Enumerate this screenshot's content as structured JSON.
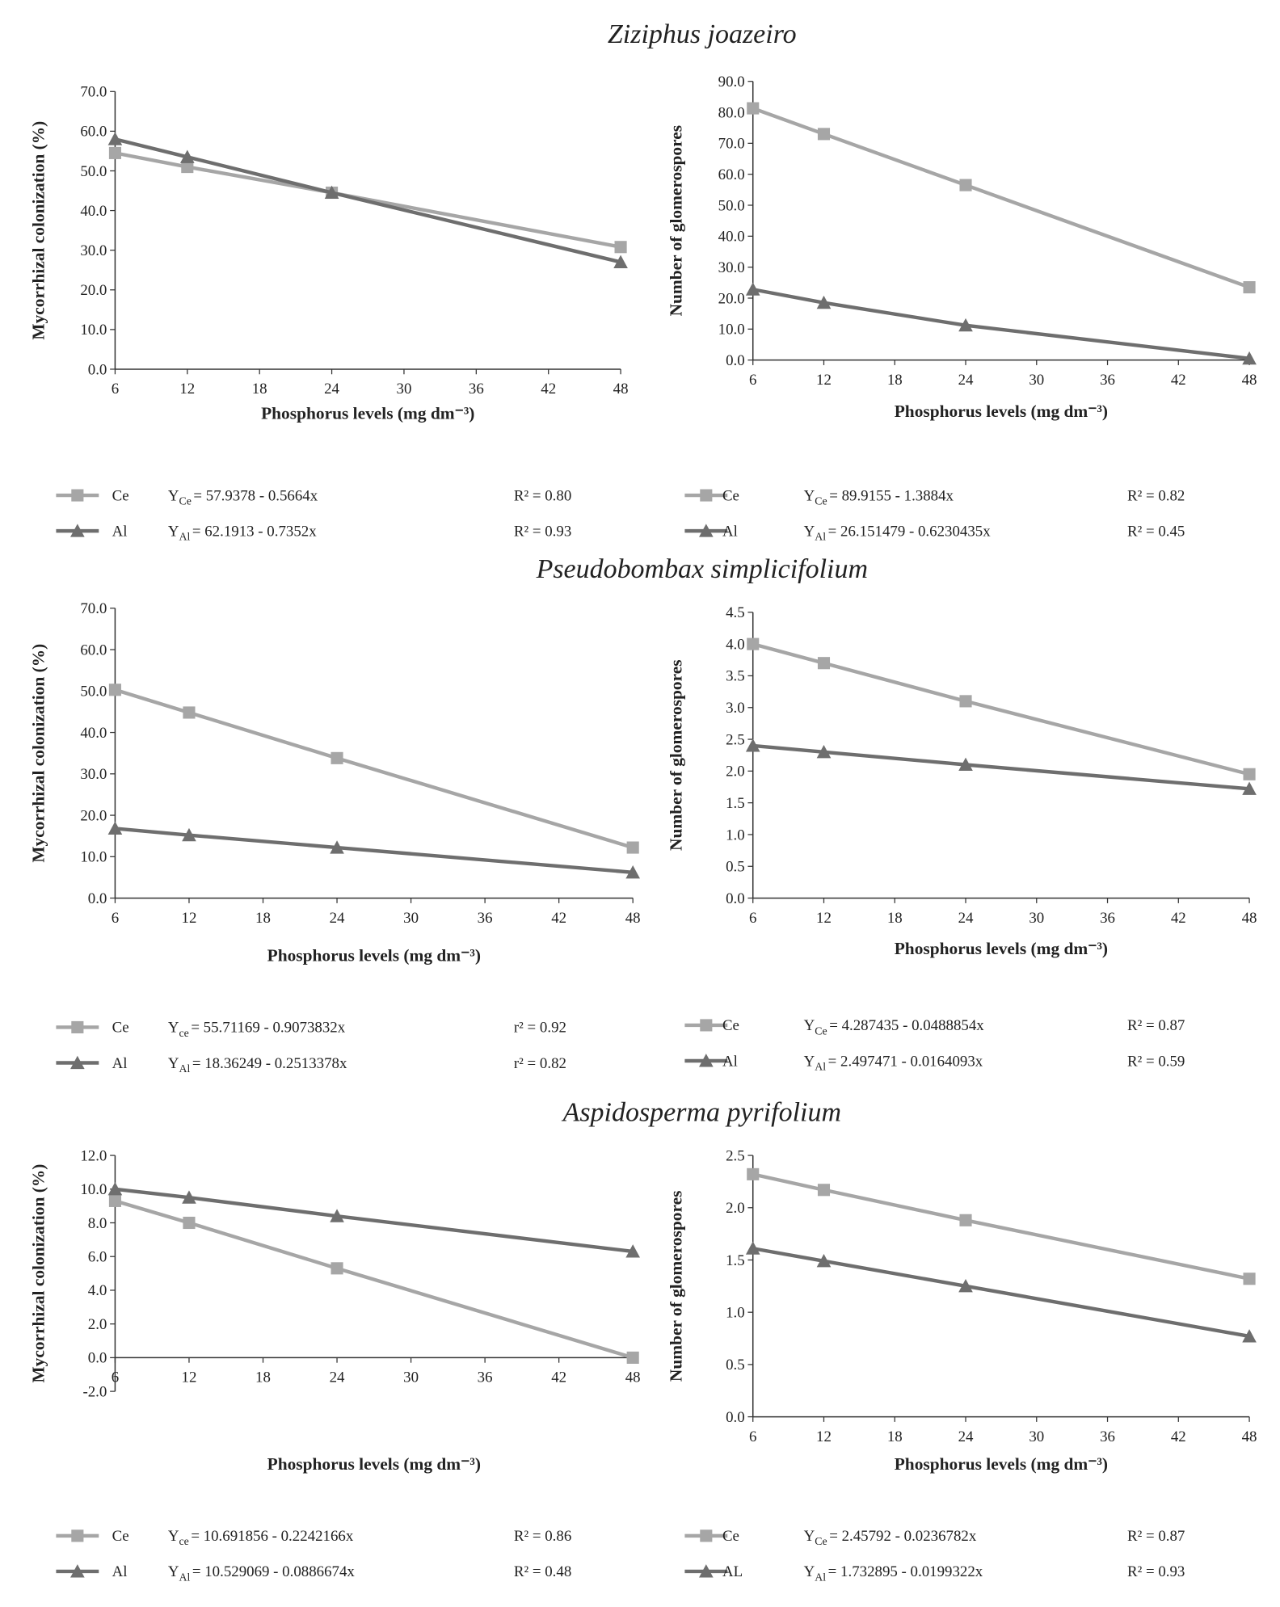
{
  "section_titles": [
    "Ziziphus joazeiro",
    "Pseudobombax simplicifolium",
    "Aspidosperma pyrifolium"
  ],
  "chart_data": [
    {
      "type": "line",
      "xlabel": "Phosphorus levels (mg dm⁻³)",
      "ylabel": "Mycorrhizal colonization (%)",
      "x": [
        6,
        12,
        24,
        48
      ],
      "xlim": [
        6,
        48
      ],
      "xticks": [
        6,
        12,
        18,
        24,
        30,
        36,
        42,
        48
      ],
      "ylim": [
        0,
        70
      ],
      "yticks": [
        {
          "value": 0,
          "label": "0.0"
        },
        {
          "value": 10,
          "label": "10.0"
        },
        {
          "value": 20,
          "label": "20.0"
        },
        {
          "value": 30,
          "label": "30.0"
        },
        {
          "value": 40,
          "label": "40.0"
        },
        {
          "value": 50,
          "label": "50.0"
        },
        {
          "value": 60,
          "label": "60.0"
        },
        {
          "value": 70,
          "label": "70.0"
        }
      ],
      "series": [
        {
          "name": "Ce",
          "color": "#a6a6a6",
          "marker": "square",
          "values": [
            54.5,
            51,
            44.5,
            30.8
          ],
          "equation": {
            "lhs": "Y",
            "sub": "Ce",
            "rhs": "= 57.9378 - 0.5664x"
          },
          "r2": "R² = 0.80"
        },
        {
          "name": "Al",
          "color": "#6e6e6e",
          "marker": "triangle",
          "values": [
            58,
            53.5,
            44.5,
            27
          ],
          "equation": {
            "lhs": "Y",
            "sub": "Al",
            "rhs": "= 62.1913 - 0.7352x"
          },
          "r2": "R² = 0.93"
        }
      ]
    },
    {
      "type": "line",
      "xlabel": "Phosphorus levels (mg dm⁻³)",
      "ylabel": "Number of glomerospores",
      "x": [
        6,
        12,
        24,
        48
      ],
      "xlim": [
        6,
        48
      ],
      "xticks": [
        6,
        12,
        18,
        24,
        30,
        36,
        42,
        48
      ],
      "ylim": [
        0,
        90
      ],
      "yticks": [
        {
          "value": 0,
          "label": "0.0"
        },
        {
          "value": 10,
          "label": "10.0"
        },
        {
          "value": 20,
          "label": "20.0"
        },
        {
          "value": 30,
          "label": "30.0"
        },
        {
          "value": 40,
          "label": "40.0"
        },
        {
          "value": 50,
          "label": "50.0"
        },
        {
          "value": 60,
          "label": "60.0"
        },
        {
          "value": 70,
          "label": "70.0"
        },
        {
          "value": 80,
          "label": "80.0"
        },
        {
          "value": 90,
          "label": "90.0"
        }
      ],
      "series": [
        {
          "name": "Ce",
          "color": "#a6a6a6",
          "marker": "square",
          "values": [
            81.3,
            73,
            56.5,
            23.5
          ],
          "equation": {
            "lhs": "Y",
            "sub": "Ce",
            "rhs": "= 89.9155 - 1.3884x"
          },
          "r2": "R² = 0.82"
        },
        {
          "name": "Al",
          "color": "#6e6e6e",
          "marker": "triangle",
          "values": [
            22.8,
            18.5,
            11.2,
            0.5
          ],
          "equation": {
            "lhs": "Y",
            "sub": "Al",
            "rhs": "= 26.151479 - 0.6230435x"
          },
          "r2": "R² = 0.45"
        }
      ]
    },
    {
      "type": "line",
      "xlabel": "Phosphorus levels (mg dm⁻³)",
      "ylabel": "Mycorrhizal colonization (%)",
      "x": [
        6,
        12,
        24,
        48
      ],
      "xlim": [
        6,
        48
      ],
      "xticks": [
        6,
        12,
        18,
        24,
        30,
        36,
        42,
        48
      ],
      "ylim": [
        0,
        70
      ],
      "yticks": [
        {
          "value": 0,
          "label": "0.0"
        },
        {
          "value": 10,
          "label": "10.0"
        },
        {
          "value": 20,
          "label": "20.0"
        },
        {
          "value": 30,
          "label": "30.0"
        },
        {
          "value": 40,
          "label": "40.0"
        },
        {
          "value": 50,
          "label": "50.0"
        },
        {
          "value": 60,
          "label": "60.0"
        },
        {
          "value": 70,
          "label": "70.0"
        }
      ],
      "series": [
        {
          "name": "Ce",
          "color": "#a6a6a6",
          "marker": "square",
          "values": [
            50.3,
            44.8,
            33.8,
            12.2
          ],
          "equation": {
            "lhs": "Y",
            "sub": "ce",
            "rhs": "= 55.71169 - 0.9073832x"
          },
          "r2": "r² = 0.92"
        },
        {
          "name": "Al",
          "color": "#6e6e6e",
          "marker": "triangle",
          "values": [
            16.8,
            15.2,
            12.2,
            6.2
          ],
          "equation": {
            "lhs": "Y",
            "sub": "Al",
            "rhs": "= 18.36249 - 0.2513378x"
          },
          "r2": "r² = 0.82"
        }
      ]
    },
    {
      "type": "line",
      "xlabel": "Phosphorus levels (mg dm⁻³)",
      "ylabel": "Number of glomerospores",
      "x": [
        6,
        12,
        24,
        48
      ],
      "xlim": [
        6,
        48
      ],
      "xticks": [
        6,
        12,
        18,
        24,
        30,
        36,
        42,
        48
      ],
      "ylim": [
        0,
        4.5
      ],
      "yticks": [
        {
          "value": 0,
          "label": "0.0"
        },
        {
          "value": 0.5,
          "label": "0.5"
        },
        {
          "value": 1,
          "label": "1.0"
        },
        {
          "value": 1.5,
          "label": "1.5"
        },
        {
          "value": 2,
          "label": "2.0"
        },
        {
          "value": 2.5,
          "label": "2.5"
        },
        {
          "value": 3,
          "label": "3.0"
        },
        {
          "value": 3.5,
          "label": "3.5"
        },
        {
          "value": 4,
          "label": "4.0"
        },
        {
          "value": 4.5,
          "label": "4.5"
        }
      ],
      "series": [
        {
          "name": "Ce",
          "color": "#a6a6a6",
          "marker": "square",
          "values": [
            4.0,
            3.7,
            3.1,
            1.95
          ],
          "equation": {
            "lhs": "Y",
            "sub": "Ce",
            "rhs": "= 4.287435 - 0.0488854x"
          },
          "r2": "R² = 0.87"
        },
        {
          "name": "Al",
          "color": "#6e6e6e",
          "marker": "triangle",
          "values": [
            2.4,
            2.3,
            2.1,
            1.72
          ],
          "equation": {
            "lhs": "Y",
            "sub": "Al",
            "rhs": "= 2.497471 - 0.0164093x"
          },
          "r2": "R² = 0.59"
        }
      ]
    },
    {
      "type": "line",
      "xlabel": "Phosphorus levels (mg dm⁻³)",
      "ylabel": "Mycorrhizal colonization (%)",
      "x": [
        6,
        12,
        24,
        48
      ],
      "xlim": [
        6,
        48
      ],
      "xticks": [
        6,
        12,
        18,
        24,
        30,
        36,
        42,
        48
      ],
      "ylim": [
        -2,
        12
      ],
      "yticks": [
        {
          "value": -2,
          "label": "-2.0"
        },
        {
          "value": 0,
          "label": "0.0"
        },
        {
          "value": 2,
          "label": "2.0"
        },
        {
          "value": 4,
          "label": "4.0"
        },
        {
          "value": 6,
          "label": "6.0"
        },
        {
          "value": 8,
          "label": "8.0"
        },
        {
          "value": 10,
          "label": "10.0"
        },
        {
          "value": 12,
          "label": "12.0"
        }
      ],
      "series": [
        {
          "name": "Ce",
          "color": "#a6a6a6",
          "marker": "square",
          "values": [
            9.3,
            8.0,
            5.3,
            0.0
          ],
          "equation": {
            "lhs": "Y",
            "sub": "ce",
            "rhs": "= 10.691856 - 0.2242166x"
          },
          "r2": "R² = 0.86"
        },
        {
          "name": "Al",
          "color": "#6e6e6e",
          "marker": "triangle",
          "values": [
            10.0,
            9.5,
            8.4,
            6.3
          ],
          "equation": {
            "lhs": "Y",
            "sub": "Al",
            "rhs": "= 10.529069 - 0.0886674x"
          },
          "r2": "R² = 0.48"
        }
      ]
    },
    {
      "type": "line",
      "xlabel": "Phosphorus levels (mg dm⁻³)",
      "ylabel": "Number of glomerospores",
      "x": [
        6,
        12,
        24,
        48
      ],
      "xlim": [
        6,
        48
      ],
      "xticks": [
        6,
        12,
        18,
        24,
        30,
        36,
        42,
        48
      ],
      "ylim": [
        0,
        2.5
      ],
      "yticks": [
        {
          "value": 0,
          "label": "0.0"
        },
        {
          "value": 0.5,
          "label": "0.5"
        },
        {
          "value": 1,
          "label": "1.0"
        },
        {
          "value": 1.5,
          "label": "1.5"
        },
        {
          "value": 2,
          "label": "2.0"
        },
        {
          "value": 2.5,
          "label": "2.5"
        }
      ],
      "series": [
        {
          "name": "Ce",
          "color": "#a6a6a6",
          "marker": "square",
          "values": [
            2.32,
            2.17,
            1.88,
            1.32
          ],
          "equation": {
            "lhs": "Y",
            "sub": "Ce",
            "rhs": "= 2.45792 - 0.0236782x"
          },
          "r2": "R² = 0.87"
        },
        {
          "name": "AL",
          "color": "#6e6e6e",
          "marker": "triangle",
          "values": [
            1.61,
            1.49,
            1.25,
            0.77
          ],
          "equation": {
            "lhs": "Y",
            "sub": "Al",
            "rhs": "= 1.732895 - 0.0199322x"
          },
          "r2": "R² = 0.93"
        }
      ]
    }
  ]
}
